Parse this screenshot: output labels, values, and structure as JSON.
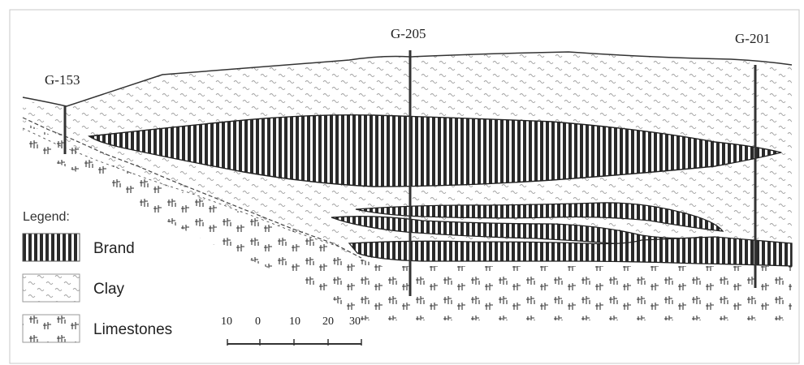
{
  "wells": [
    {
      "id": "G-153"
    },
    {
      "id": "G-205"
    },
    {
      "id": "G-201"
    }
  ],
  "legend": {
    "title": "Legend:",
    "items": [
      {
        "label": "Brand",
        "pattern": "vertical-stripes"
      },
      {
        "label": "Clay",
        "pattern": "dashed-waves"
      },
      {
        "label": "Limestones",
        "pattern": "limestone-ticks"
      }
    ]
  },
  "scale_bar": {
    "ticks": [
      "10",
      "0",
      "10",
      "20",
      "30"
    ]
  },
  "colors": {
    "line": "#333333",
    "stripe": "#2a2a2a",
    "clay": "#9a9a9a",
    "frame": "#c8c8c8"
  }
}
